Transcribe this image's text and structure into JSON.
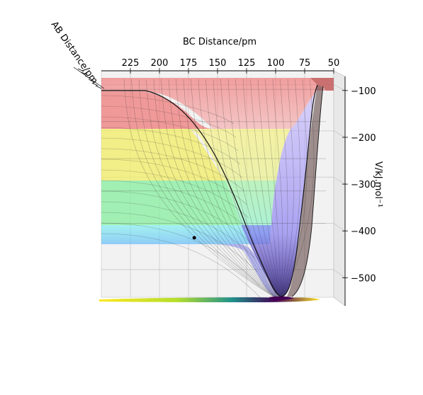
{
  "chart_data": {
    "type": "surface3d",
    "xlabel": "BC Distance/pm",
    "ylabel": "AB Distance/pm",
    "zlabel": "V/kJ.mol⁻¹",
    "x_ticks": [
      225,
      200,
      175,
      150,
      125,
      100,
      75,
      50
    ],
    "z_ticks": [
      -100,
      -200,
      -300,
      -400,
      -500
    ],
    "xlim": [
      250,
      50
    ],
    "zlim": [
      -560,
      -70
    ],
    "plateau_energy": -425,
    "asymptote_energy": -100,
    "well_minimum": {
      "bc_distance": 95,
      "energy": -540
    },
    "trajectory_point": {
      "bc_distance": 170,
      "energy": -425
    },
    "contour_levels": [
      -110,
      -180,
      -260,
      -330,
      -400,
      -460,
      -520
    ],
    "surface_colormap": "jet",
    "floor_colormap": "viridis",
    "grid": true
  }
}
